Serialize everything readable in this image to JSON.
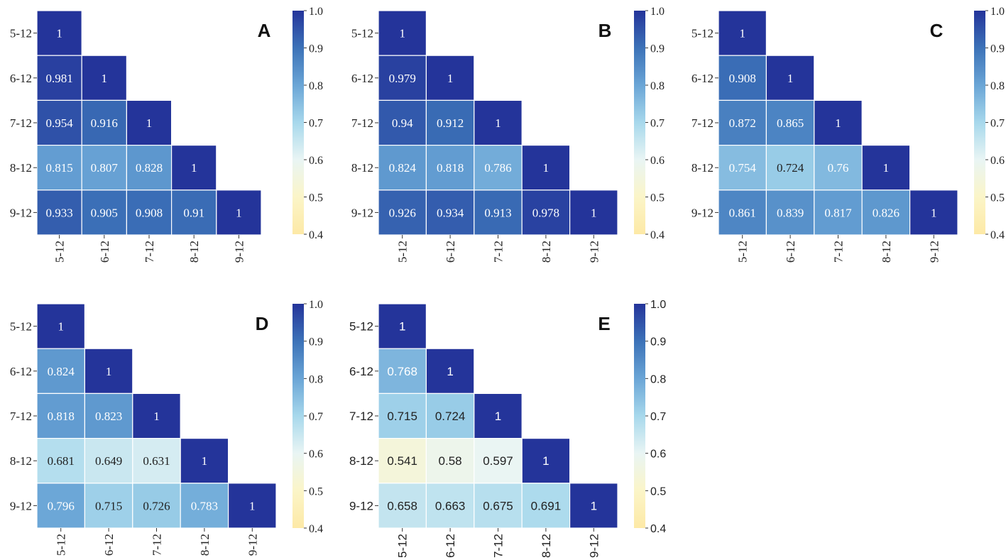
{
  "chart_data": [
    {
      "type": "heatmap",
      "panel_label": "A",
      "font": "serif",
      "row_labels": [
        "5-12",
        "6-12",
        "7-12",
        "8-12",
        "9-12"
      ],
      "col_labels": [
        "5-12",
        "6-12",
        "7-12",
        "8-12",
        "9-12"
      ],
      "values": [
        [
          1
        ],
        [
          0.981,
          1
        ],
        [
          0.954,
          0.916,
          1
        ],
        [
          0.815,
          0.807,
          0.828,
          1
        ],
        [
          0.933,
          0.905,
          0.908,
          0.91,
          1
        ]
      ],
      "value_labels": [
        [
          "1"
        ],
        [
          "0.981",
          "1"
        ],
        [
          "0.954",
          "0.916",
          "1"
        ],
        [
          "0.815",
          "0.807",
          "0.828",
          "1"
        ],
        [
          "0.933",
          "0.905",
          "0.908",
          "0.91",
          "1"
        ]
      ],
      "colorbar": {
        "min": 0.4,
        "max": 1.0,
        "ticks": [
          "0.4",
          "0.5",
          "0.6",
          "0.7",
          "0.8",
          "0.9",
          "1.0"
        ]
      }
    },
    {
      "type": "heatmap",
      "panel_label": "B",
      "font": "serif",
      "row_labels": [
        "5-12",
        "6-12",
        "7-12",
        "8-12",
        "9-12"
      ],
      "col_labels": [
        "5-12",
        "6-12",
        "7-12",
        "8-12",
        "9-12"
      ],
      "values": [
        [
          1
        ],
        [
          0.979,
          1
        ],
        [
          0.94,
          0.912,
          1
        ],
        [
          0.824,
          0.818,
          0.786,
          1
        ],
        [
          0.926,
          0.934,
          0.913,
          0.978,
          1
        ]
      ],
      "value_labels": [
        [
          "1"
        ],
        [
          "0.979",
          "1"
        ],
        [
          "0.94",
          "0.912",
          "1"
        ],
        [
          "0.824",
          "0.818",
          "0.786",
          "1"
        ],
        [
          "0.926",
          "0.934",
          "0.913",
          "0.978",
          "1"
        ]
      ],
      "colorbar": {
        "min": 0.4,
        "max": 1.0,
        "ticks": [
          "0.4",
          "0.5",
          "0.6",
          "0.7",
          "0.8",
          "0.9",
          "1.0"
        ]
      }
    },
    {
      "type": "heatmap",
      "panel_label": "C",
      "font": "serif",
      "row_labels": [
        "5-12",
        "6-12",
        "7-12",
        "8-12",
        "9-12"
      ],
      "col_labels": [
        "5-12",
        "6-12",
        "7-12",
        "8-12",
        "9-12"
      ],
      "values": [
        [
          1
        ],
        [
          0.908,
          1
        ],
        [
          0.872,
          0.865,
          1
        ],
        [
          0.754,
          0.724,
          0.76,
          1
        ],
        [
          0.861,
          0.839,
          0.817,
          0.826,
          1
        ]
      ],
      "value_labels": [
        [
          "1"
        ],
        [
          "0.908",
          "1"
        ],
        [
          "0.872",
          "0.865",
          "1"
        ],
        [
          "0.754",
          "0.724",
          "0.76",
          "1"
        ],
        [
          "0.861",
          "0.839",
          "0.817",
          "0.826",
          "1"
        ]
      ],
      "colorbar": {
        "min": 0.4,
        "max": 1.0,
        "ticks": [
          "0.4",
          "0.5",
          "0.6",
          "0.7",
          "0.8",
          "0.9",
          "1.0"
        ]
      }
    },
    {
      "type": "heatmap",
      "panel_label": "D",
      "font": "serif",
      "row_labels": [
        "5-12",
        "6-12",
        "7-12",
        "8-12",
        "9-12"
      ],
      "col_labels": [
        "5-12",
        "6-12",
        "7-12",
        "8-12",
        "9-12"
      ],
      "values": [
        [
          1
        ],
        [
          0.824,
          1
        ],
        [
          0.818,
          0.823,
          1
        ],
        [
          0.681,
          0.649,
          0.631,
          1
        ],
        [
          0.796,
          0.715,
          0.726,
          0.783,
          1
        ]
      ],
      "value_labels": [
        [
          "1"
        ],
        [
          "0.824",
          "1"
        ],
        [
          "0.818",
          "0.823",
          "1"
        ],
        [
          "0.681",
          "0.649",
          "0.631",
          "1"
        ],
        [
          "0.796",
          "0.715",
          "0.726",
          "0.783",
          "1"
        ]
      ],
      "colorbar": {
        "min": 0.4,
        "max": 1.0,
        "ticks": [
          "0.4",
          "0.5",
          "0.6",
          "0.7",
          "0.8",
          "0.9",
          "1.0"
        ]
      }
    },
    {
      "type": "heatmap",
      "panel_label": "E",
      "font": "sans",
      "row_labels": [
        "5-12",
        "6-12",
        "7-12",
        "8-12",
        "9-12"
      ],
      "col_labels": [
        "5-12",
        "6-12",
        "7-12",
        "8-12",
        "9-12"
      ],
      "values": [
        [
          1
        ],
        [
          0.768,
          1
        ],
        [
          0.715,
          0.724,
          1
        ],
        [
          0.541,
          0.58,
          0.597,
          1
        ],
        [
          0.658,
          0.663,
          0.675,
          0.691,
          1
        ]
      ],
      "value_labels": [
        [
          "1"
        ],
        [
          "0.768",
          "1"
        ],
        [
          "0.715",
          "0.724",
          "1"
        ],
        [
          "0.541",
          "0.58",
          "0.597",
          "1"
        ],
        [
          "0.658",
          "0.663",
          "0.675",
          "0.691",
          "1"
        ]
      ],
      "colorbar": {
        "min": 0.4,
        "max": 1.0,
        "ticks": [
          "0.4",
          "0.5",
          "0.6",
          "0.7",
          "0.8",
          "0.9",
          "1.0"
        ]
      }
    }
  ],
  "colormap": {
    "name": "YlGnBu-like",
    "stops": [
      {
        "v": 0.4,
        "color": "#fde9a6"
      },
      {
        "v": 0.5,
        "color": "#fbf5c8"
      },
      {
        "v": 0.6,
        "color": "#e9f5f4"
      },
      {
        "v": 0.7,
        "color": "#a7d8ec"
      },
      {
        "v": 0.8,
        "color": "#6aa5d6"
      },
      {
        "v": 0.9,
        "color": "#3c72b8"
      },
      {
        "v": 1.0,
        "color": "#24349a"
      }
    ]
  }
}
